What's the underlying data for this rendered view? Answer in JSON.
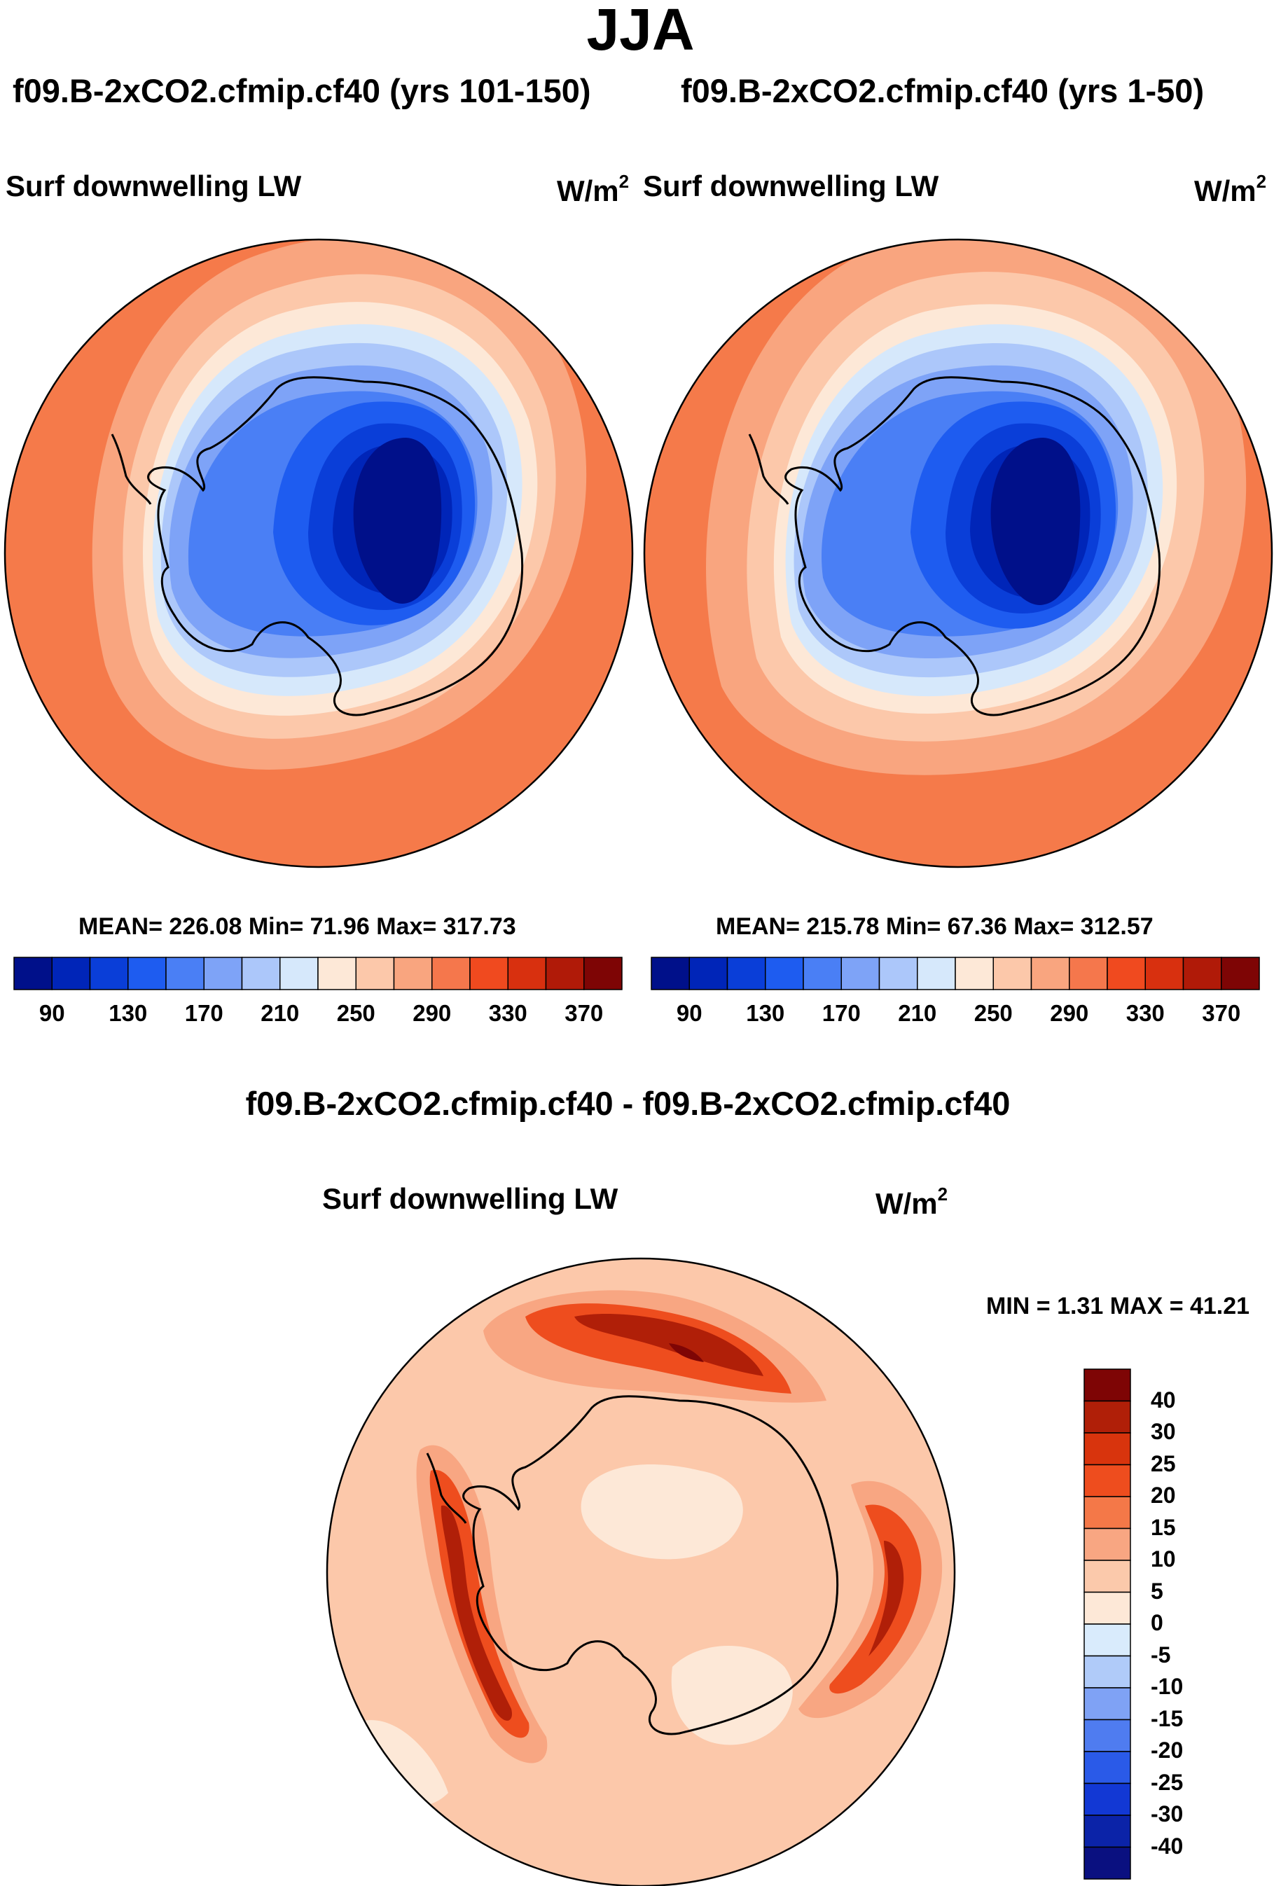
{
  "title": "JJA",
  "panels": [
    {
      "case_title": "f09.B-2xCO2.cfmip.cf40 (yrs 101-150)",
      "variable": "Surf downwelling LW",
      "units": "W/m",
      "units_sup": "2",
      "stats": "MEAN= 226.08  Min=  71.96  Max= 317.73"
    },
    {
      "case_title": "f09.B-2xCO2.cfmip.cf40 (yrs 1-50)",
      "variable": "Surf downwelling LW",
      "units": "W/m",
      "units_sup": "2",
      "stats": "MEAN= 215.78  Min=  67.36  Max= 312.57"
    }
  ],
  "diff_panel": {
    "case_title": "f09.B-2xCO2.cfmip.cf40 - f09.B-2xCO2.cfmip.cf40",
    "variable": "Surf downwelling LW",
    "units": "W/m",
    "units_sup": "2",
    "stats": "MIN =   1.31 MAX =  41.21"
  },
  "abs_colorbar": {
    "colors": [
      "#00108a",
      "#0025b8",
      "#0a3ed8",
      "#1e5cf0",
      "#4a7ff5",
      "#7ea3f7",
      "#acc7fa",
      "#d6e8fb",
      "#fde8d7",
      "#fcc8aa",
      "#f9a57f",
      "#f5774c",
      "#f04a1f",
      "#d8300f",
      "#b01a08",
      "#7e0505"
    ],
    "ticks": [
      "90",
      "130",
      "170",
      "210",
      "250",
      "290",
      "330",
      "370"
    ]
  },
  "diff_colorbar": {
    "colors": [
      "#0a1080",
      "#0b23a8",
      "#1238d4",
      "#2a5ae8",
      "#4f7cf0",
      "#7fa2f5",
      "#b0cbf9",
      "#d9ebfc",
      "#fde8d7",
      "#fbc9ab",
      "#f8a682",
      "#f47848",
      "#ee4d1e",
      "#d8340d",
      "#b01f08",
      "#7e0505"
    ],
    "ticks": [
      "40",
      "30",
      "25",
      "20",
      "15",
      "10",
      "5",
      "0",
      "-5",
      "-10",
      "-15",
      "-20",
      "-25",
      "-30",
      "-40"
    ]
  },
  "map_colors": {
    "ocean_far": "#f57a4a",
    "ocean_mid": "#f9a57f",
    "ocean_near": "#fcc8aa",
    "ice_edge": "#fde8d7",
    "coast_light": "#d6e8fb",
    "coast_blue": "#acc7fa",
    "shelf_blue": "#7ea3f7",
    "interior_1": "#4a7ff5",
    "interior_2": "#1e5cf0",
    "interior_3": "#0a3ed8",
    "interior_4": "#0025b8",
    "plateau": "#00108a",
    "diff_base": "#fcc8aa",
    "diff_light": "#fde8d7",
    "diff_mid": "#f8a682",
    "diff_strong": "#ee4d1e",
    "diff_max": "#b01f08",
    "diff_peak": "#7e0505"
  }
}
